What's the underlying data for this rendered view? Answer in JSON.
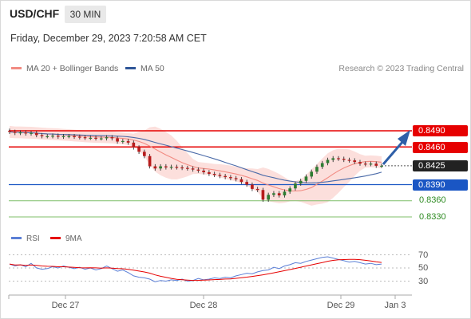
{
  "header": {
    "pair": "USD/CHF",
    "timeframe": "30 MIN",
    "timestamp": "Friday, December 29, 2023 7:20:58 AM CET",
    "credit": "Research © 2023 Trading Central"
  },
  "legend": {
    "ma20": "MA 20 + Bollinger Bands",
    "ma50": "MA 50",
    "ma20_color": "#f28b82",
    "ma50_color": "#2e5597"
  },
  "rsi_legend": {
    "rsi": "RSI",
    "ma9": "9MA",
    "rsi_color": "#5b7fd6",
    "ma9_color": "#e60000"
  },
  "levels": [
    {
      "value": 0.849,
      "label": "0.8490",
      "style": "red-line",
      "color": "#e60000"
    },
    {
      "value": 0.846,
      "label": "0.8460",
      "style": "red-line",
      "color": "#e60000"
    },
    {
      "value": 0.8425,
      "label": "0.8425",
      "style": "current-price",
      "color": "#222222"
    },
    {
      "value": 0.839,
      "label": "0.8390",
      "style": "blue-line",
      "color": "#1a56c4"
    },
    {
      "value": 0.836,
      "label": "0.8360",
      "style": "green-line",
      "color": "#2e8b22"
    },
    {
      "value": 0.833,
      "label": "0.8330",
      "style": "green-line",
      "color": "#2e8b22"
    }
  ],
  "rsi_axis": [
    "70",
    "50",
    "30"
  ],
  "x_axis": [
    "Dec 27",
    "Dec 28",
    "Dec 29",
    "Jan 3"
  ],
  "chart_data": {
    "type": "candlestick",
    "symbol": "USD/CHF",
    "timeframe": "30 MIN",
    "ylim": [
      0.8326,
      0.8515
    ],
    "trend_arrow": {
      "from": 0.8425,
      "to": 0.849,
      "direction": "up"
    },
    "price_series": [
      0.8488,
      0.8486,
      0.8487,
      0.8485,
      0.8486,
      0.8482,
      0.848,
      0.848,
      0.8481,
      0.8479,
      0.848,
      0.848,
      0.8479,
      0.8478,
      0.8477,
      0.8477,
      0.8476,
      0.8476,
      0.8478,
      0.8476,
      0.847,
      0.8471,
      0.8468,
      0.8459,
      0.8451,
      0.8443,
      0.8424,
      0.842,
      0.8424,
      0.8422,
      0.8423,
      0.8422,
      0.8421,
      0.842,
      0.8418,
      0.8416,
      0.8413,
      0.841,
      0.8408,
      0.8406,
      0.8404,
      0.8402,
      0.84,
      0.8395,
      0.839,
      0.8382,
      0.838,
      0.8362,
      0.8371,
      0.8374,
      0.837,
      0.8377,
      0.8383,
      0.8392,
      0.8397,
      0.8405,
      0.8414,
      0.8423,
      0.843,
      0.8436,
      0.8439,
      0.8438,
      0.8436,
      0.8435,
      0.8432,
      0.8429,
      0.8428,
      0.8429,
      0.8425,
      0.8425
    ],
    "rsi_values": [
      56,
      53,
      55,
      52,
      57,
      50,
      48,
      49,
      52,
      50,
      53,
      51,
      49,
      51,
      48,
      50,
      47,
      49,
      53,
      49,
      45,
      47,
      43,
      38,
      36,
      35,
      33,
      29,
      31,
      30,
      32,
      31,
      33,
      30,
      31,
      34,
      32,
      33,
      35,
      34,
      36,
      35,
      38,
      40,
      42,
      41,
      44,
      46,
      47,
      51,
      49,
      53,
      55,
      58,
      57,
      60,
      62,
      64,
      66,
      67,
      65,
      63,
      61,
      59,
      60,
      58,
      56,
      57,
      55,
      56
    ],
    "rsi_scale": [
      30,
      50,
      70
    ],
    "ma20_last": 0.8418,
    "ma50_last": 0.84
  }
}
